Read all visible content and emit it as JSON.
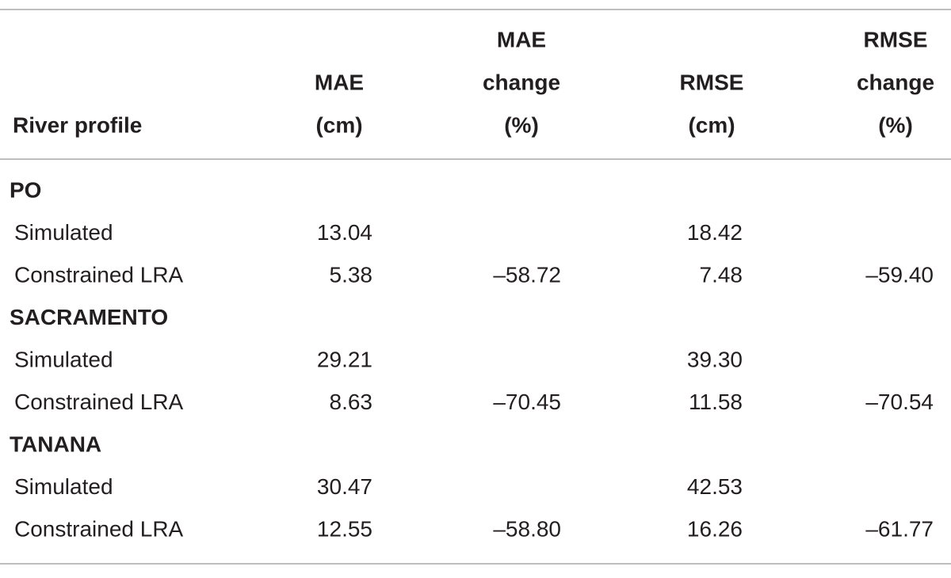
{
  "table": {
    "header": [
      [
        "River profile"
      ],
      [
        "MAE",
        "(cm)"
      ],
      [
        "MAE",
        "change",
        "(%)"
      ],
      [
        "RMSE",
        "(cm)"
      ],
      [
        "RMSE",
        "change",
        "(%)"
      ]
    ],
    "groups": [
      {
        "name": "PO",
        "rows": [
          {
            "label": "Simulated",
            "mae": "13.04",
            "rmse": "18.42"
          },
          {
            "label": "Constrained LRA",
            "mae": "5.38",
            "mae_change": "–58.72",
            "rmse": "7.48",
            "rmse_change": "–59.40"
          }
        ]
      },
      {
        "name": "SACRAMENTO",
        "rows": [
          {
            "label": "Simulated",
            "mae": "29.21",
            "rmse": "39.30"
          },
          {
            "label": "Constrained LRA",
            "mae": "8.63",
            "mae_change": "–70.45",
            "rmse": "11.58",
            "rmse_change": "–70.54"
          }
        ]
      },
      {
        "name": "TANANA",
        "rows": [
          {
            "label": "Simulated",
            "mae": "30.47",
            "rmse": "42.53"
          },
          {
            "label": "Constrained LRA",
            "mae": "12.55",
            "mae_change": "–58.80",
            "rmse": "16.26",
            "rmse_change": "–61.77"
          }
        ]
      }
    ]
  }
}
